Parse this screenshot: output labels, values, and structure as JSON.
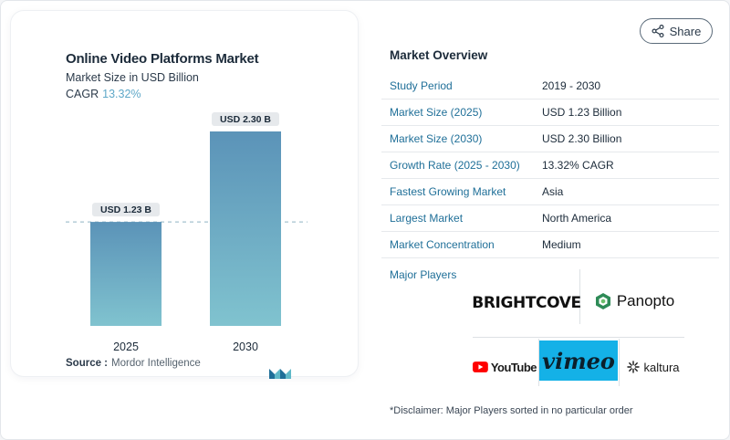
{
  "chart_data": {
    "type": "bar",
    "title": "Online Video Platforms Market",
    "subtitle": "Market Size in USD Billion",
    "cagr_label": "CAGR",
    "cagr_value": "13.32%",
    "categories": [
      "2025",
      "2030"
    ],
    "values": [
      1.23,
      2.3
    ],
    "data_labels": [
      "USD 1.23 B",
      "USD 2.30 B"
    ],
    "ylim": [
      0,
      2.3
    ],
    "grid": false,
    "reference_line": {
      "value": 1.23,
      "style": "dashed"
    },
    "bar_color_top": "#5b93b8",
    "bar_color_bottom": "#80c3cf",
    "source_label": "Source :",
    "source_value": "Mordor Intelligence"
  },
  "share": {
    "label": "Share",
    "icon": "share-icon"
  },
  "overview": {
    "title": "Market Overview",
    "rows": [
      {
        "key": "Study Period",
        "value": "2019 - 2030"
      },
      {
        "key": "Market Size (2025)",
        "value": "USD 1.23 Billion"
      },
      {
        "key": "Market Size (2030)",
        "value": "USD 2.30 Billion"
      },
      {
        "key": "Growth Rate (2025 - 2030)",
        "value": "13.32% CAGR"
      },
      {
        "key": "Fastest Growing Market",
        "value": "Asia"
      },
      {
        "key": "Largest Market",
        "value": "North America"
      },
      {
        "key": "Market Concentration",
        "value": "Medium"
      }
    ]
  },
  "players": {
    "title": "Major Players",
    "logos": [
      "BRIGHTCOVE",
      "Panopto",
      "YouTube",
      "vimeo",
      "kaltura"
    ]
  },
  "disclaimer": "*Disclaimer: Major Players sorted in no particular order",
  "colors": {
    "accent": "#1f6f98",
    "cagr": "#5fa8c8",
    "vimeo": "#14b1e7"
  }
}
